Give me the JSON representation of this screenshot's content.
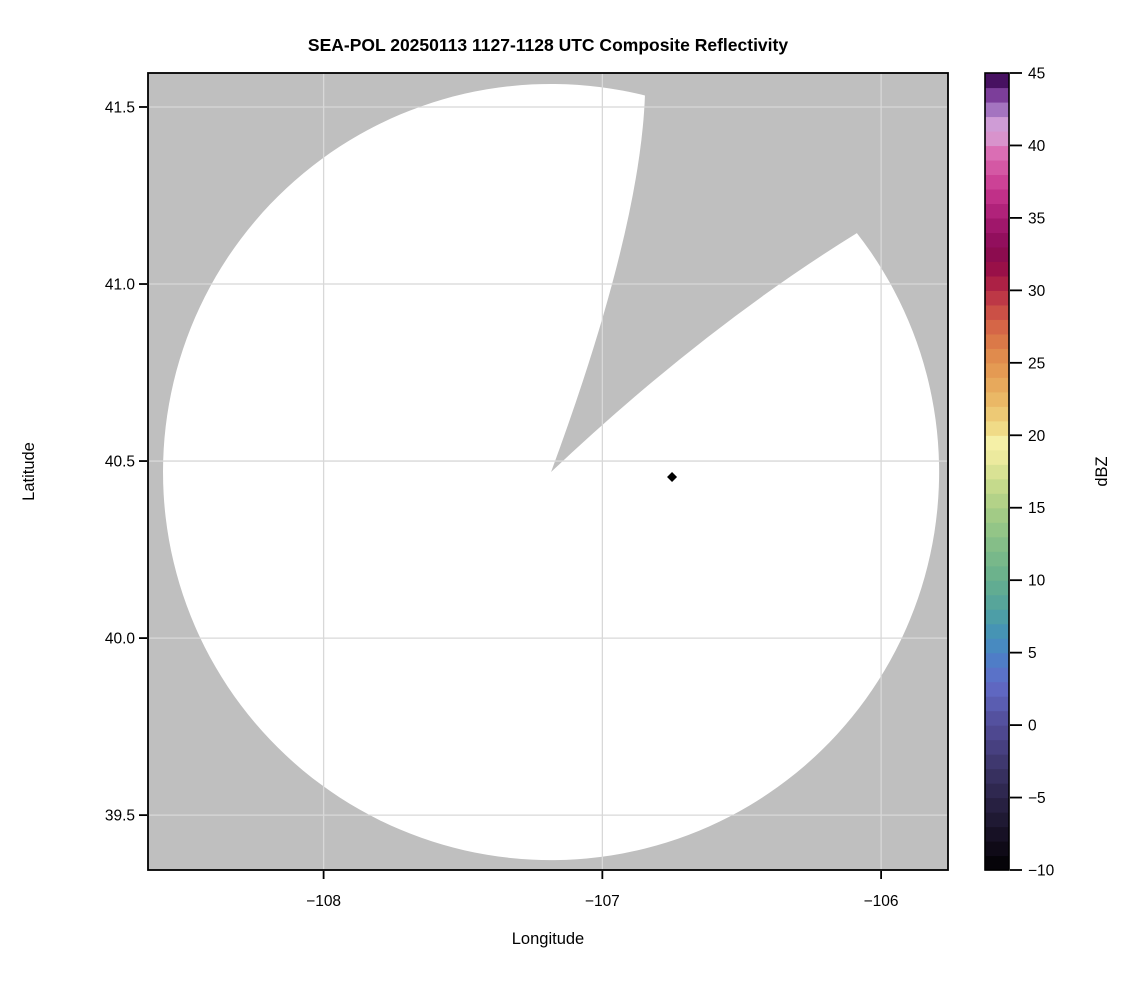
{
  "chart_data": {
    "type": "heatmap",
    "title": "SEA-POL 20250113 1127-1128 UTC Composite Reflectivity",
    "xlabel": "Longitude",
    "ylabel": "Latitude",
    "xlim": [
      -108.63,
      -105.76
    ],
    "ylim": [
      39.345,
      41.596
    ],
    "xticks": {
      "values": [
        -108,
        -107,
        -106
      ],
      "labels": [
        "−108",
        "−107",
        "−106"
      ]
    },
    "yticks": {
      "values": [
        39.5,
        40.0,
        40.5,
        41.0,
        41.5
      ],
      "labels": [
        "39.5",
        "40.0",
        "40.5",
        "41.0",
        "41.5"
      ]
    },
    "grid": true,
    "grid_color": "#d8d8d8",
    "no_data_color": "#bfbfbf",
    "coverage_fill": "#ffffff",
    "frame_color": "#000000",
    "radar_coverage": {
      "center_lon": -107.184,
      "center_lat": 40.469,
      "radius_deg_lat": 1.096,
      "missing_sector_azimuth_deg": [
        14,
        52
      ],
      "note": "white disk = radar coverage; gray pie wedge between azimuths has no data"
    },
    "marker": {
      "lon": -106.75,
      "lat": 40.455,
      "shape": "diamond",
      "color": "#000000"
    },
    "colorbar": {
      "label": "dBZ",
      "vmin": -10,
      "vmax": 45,
      "tick_values": [
        45,
        40,
        35,
        30,
        25,
        20,
        15,
        10,
        5,
        0,
        -5,
        -10
      ],
      "tick_labels": [
        "45",
        "40",
        "35",
        "30",
        "25",
        "20",
        "15",
        "10",
        "5",
        "0",
        "−5",
        "−10"
      ],
      "band_step_dbz": 1,
      "band_colors_bottom_to_top": [
        "#060409",
        "#0f0a17",
        "#171125",
        "#1f1933",
        "#272041",
        "#2f2850",
        "#37305f",
        "#3f386f",
        "#474080",
        "#4e4890",
        "#54519f",
        "#5a5db1",
        "#5f67c1",
        "#5a72c8",
        "#4f7dc7",
        "#488ac0",
        "#4694b4",
        "#4d9ea7",
        "#57a59a",
        "#61ac92",
        "#6cb28c",
        "#78b88a",
        "#85be88",
        "#93c587",
        "#a2cb86",
        "#b3d288",
        "#c5da8c",
        "#d9e294",
        "#ecea9e",
        "#f5f0a7",
        "#f0db87",
        "#edc975",
        "#eab866",
        "#e7a95c",
        "#e49a53",
        "#e08b4d",
        "#db7948",
        "#d56647",
        "#cb5046",
        "#bd3846",
        "#ac2145",
        "#991048",
        "#8c0c4f",
        "#920f5d",
        "#a0176b",
        "#b0227a",
        "#c03088",
        "#cc4296",
        "#d458a4",
        "#da6eb4",
        "#d893cc",
        "#cf9cd6",
        "#a474c0",
        "#7c3e9a",
        "#471161"
      ]
    }
  }
}
